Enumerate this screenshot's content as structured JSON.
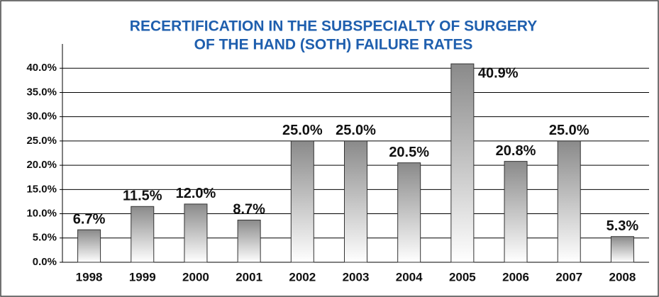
{
  "chart_data": {
    "type": "bar",
    "title": [
      "RECERTIFICATION IN THE SUBSPECIALTY OF SURGERY",
      "OF THE HAND (SOTH) FAILURE RATES"
    ],
    "categories": [
      "1998",
      "1999",
      "2000",
      "2001",
      "2002",
      "2003",
      "2004",
      "2005",
      "2006",
      "2007",
      "2008"
    ],
    "values": [
      6.7,
      11.5,
      12.0,
      8.7,
      25.0,
      25.0,
      20.5,
      40.9,
      20.8,
      25.0,
      5.3
    ],
    "value_labels": [
      "6.7%",
      "11.5%",
      "12.0%",
      "8.7%",
      "25.0%",
      "25.0%",
      "20.5%",
      "40.9%",
      "20.8%",
      "25.0%",
      "5.3%"
    ],
    "color": "#8a8a8a",
    "ylim": [
      0,
      45
    ],
    "yticks": [
      {
        "value": 0,
        "label": "0.0%"
      },
      {
        "value": 5,
        "label": "5.0%"
      },
      {
        "value": 10,
        "label": "10.0%"
      },
      {
        "value": 15,
        "label": "15.0%"
      },
      {
        "value": 20,
        "label": "20.0%"
      },
      {
        "value": 25,
        "label": "25.0%"
      },
      {
        "value": 30,
        "label": "30.0%"
      },
      {
        "value": 35,
        "label": "35.0%"
      },
      {
        "value": 40,
        "label": "40.0%"
      }
    ],
    "grid": true
  }
}
